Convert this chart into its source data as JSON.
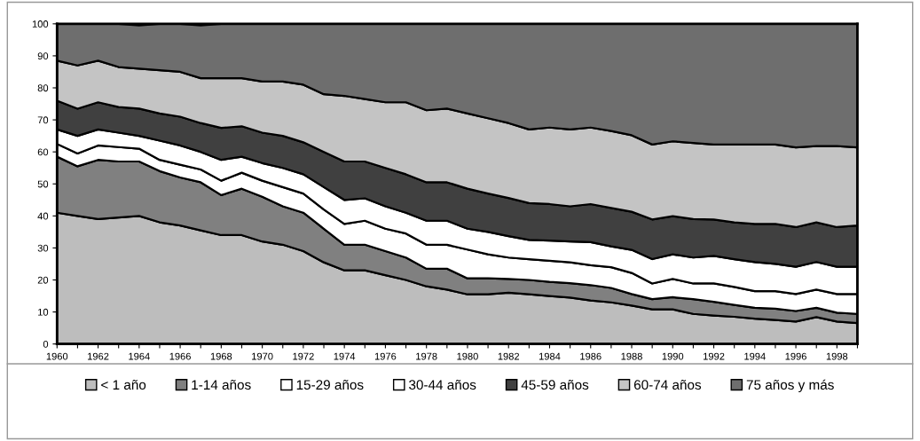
{
  "chart_data": {
    "type": "area",
    "stacked": true,
    "x": [
      1960,
      1961,
      1962,
      1963,
      1964,
      1965,
      1966,
      1967,
      1968,
      1969,
      1970,
      1971,
      1972,
      1973,
      1974,
      1975,
      1976,
      1977,
      1978,
      1979,
      1980,
      1981,
      1982,
      1983,
      1984,
      1985,
      1986,
      1987,
      1988,
      1989,
      1990,
      1991,
      1992,
      1993,
      1994,
      1995,
      1996,
      1997,
      1998,
      1999
    ],
    "series": [
      {
        "name": "< 1 año",
        "color": "#bdbdbd",
        "values": [
          41,
          40,
          39,
          39.5,
          40,
          38,
          37,
          35.5,
          34,
          34,
          32,
          31,
          29,
          25.5,
          23,
          23,
          21.5,
          20,
          18,
          17,
          15.5,
          15.5,
          16,
          15.5,
          15,
          14.5,
          13.6,
          13,
          12,
          10.8,
          10.8,
          9.4,
          8.9,
          8.5,
          7.9,
          7.5,
          7,
          8.4,
          7,
          6.5
        ]
      },
      {
        "name": "1-14 años",
        "color": "#808080",
        "values": [
          17.5,
          15.5,
          18.5,
          17.5,
          17,
          16,
          15,
          15,
          12.5,
          14.5,
          14,
          12,
          12,
          10.5,
          8,
          8,
          7.5,
          7,
          5.5,
          6.5,
          5,
          5,
          4.3,
          4.5,
          4.4,
          4.5,
          4.8,
          4.5,
          3.6,
          3.2,
          3.8,
          4.6,
          4.3,
          3.7,
          3.4,
          3.5,
          3.3,
          2.9,
          2.8,
          2.9
        ]
      },
      {
        "name": "15-29 años",
        "color": "#ffffff",
        "values": [
          4,
          4,
          4.5,
          4.5,
          4,
          3.5,
          4,
          4,
          4.5,
          5,
          5,
          6,
          6,
          6,
          6.5,
          7.5,
          7,
          7.5,
          7.5,
          7.5,
          9,
          7.5,
          6.7,
          6.5,
          6.6,
          6.5,
          6.2,
          6.5,
          6.6,
          4.9,
          5.7,
          4.9,
          5.7,
          5.6,
          5.2,
          5.5,
          5.3,
          5.7,
          5.8,
          6.2
        ]
      },
      {
        "name": "30-44 años",
        "color": "#ffffff",
        "values": [
          4.5,
          5.5,
          5,
          4.5,
          4,
          6,
          6,
          5.5,
          6.5,
          5,
          5.5,
          6,
          6,
          7,
          7.5,
          7,
          7,
          6.5,
          7.5,
          7.5,
          6.5,
          7,
          6.7,
          6,
          6.3,
          6.5,
          7.2,
          6.5,
          7.2,
          7.6,
          7.7,
          8.1,
          8.6,
          8.7,
          9.1,
          8.5,
          8.5,
          8.6,
          8.5,
          8.5
        ]
      },
      {
        "name": "45-59 años",
        "color": "#404040",
        "values": [
          9,
          8.5,
          8.5,
          8,
          8.5,
          8.5,
          9,
          9,
          10,
          9.5,
          9.5,
          10,
          10,
          11,
          12,
          11.5,
          12,
          12,
          12,
          12,
          12.5,
          12,
          11.9,
          11.5,
          11.4,
          11,
          11.9,
          12,
          11.9,
          12.4,
          11.9,
          12,
          11.4,
          11.5,
          11.9,
          12.5,
          12.4,
          12.4,
          12.4,
          12.9
        ]
      },
      {
        "name": "60-74 años",
        "color": "#c4c4c4",
        "values": [
          12.5,
          13.5,
          13,
          12.5,
          12.5,
          13.5,
          14,
          14,
          15.5,
          15,
          16,
          17,
          18,
          18,
          20.5,
          19.5,
          20.5,
          22.5,
          22.5,
          23,
          23.5,
          23.5,
          23.4,
          23,
          23.9,
          24,
          23.9,
          24,
          23.9,
          23.4,
          23.4,
          23.8,
          23.4,
          24.3,
          24.8,
          24.8,
          24.9,
          23.8,
          25.3,
          24.4
        ]
      },
      {
        "name": "75 años y más",
        "color": "#6e6e6e",
        "values": [
          11.5,
          13,
          11.5,
          13.5,
          13.5,
          14.5,
          15,
          16.5,
          17,
          17,
          18,
          18,
          19,
          22,
          22.5,
          23.5,
          24.5,
          24.5,
          27,
          26.5,
          28,
          29.5,
          31,
          33,
          32.4,
          33,
          32.4,
          33.5,
          34.8,
          37.7,
          36.7,
          37.2,
          37.7,
          37.7,
          37.7,
          37.7,
          38.6,
          38.2,
          38.2,
          38.6
        ]
      }
    ],
    "xlim": [
      1960,
      1999
    ],
    "xticks": [
      1960,
      {
        "value": 1961,
        "label": null
      },
      1962,
      {
        "value": 1963,
        "label": null
      },
      1964,
      {
        "value": 1965,
        "label": null
      },
      1966,
      {
        "value": 1967,
        "label": null
      },
      1968,
      {
        "value": 1969,
        "label": null
      },
      1970,
      {
        "value": 1971,
        "label": null
      },
      1972,
      {
        "value": 1973,
        "label": null
      },
      1974,
      {
        "value": 1975,
        "label": null
      },
      1976,
      {
        "value": 1977,
        "label": null
      },
      1978,
      {
        "value": 1979,
        "label": null
      },
      1980,
      {
        "value": 1981,
        "label": null
      },
      1982,
      {
        "value": 1983,
        "label": null
      },
      1984,
      {
        "value": 1985,
        "label": null
      },
      1986,
      {
        "value": 1987,
        "label": null
      },
      1988,
      {
        "value": 1989,
        "label": null
      },
      1990,
      {
        "value": 1991,
        "label": null
      },
      1992,
      {
        "value": 1993,
        "label": null
      },
      1994,
      {
        "value": 1995,
        "label": null
      },
      1996,
      {
        "value": 1997,
        "label": null
      },
      1998,
      {
        "value": 1999,
        "label": null
      }
    ],
    "ylim": [
      0,
      100
    ],
    "yticks": [
      0,
      10,
      20,
      30,
      40,
      50,
      60,
      70,
      80,
      90,
      100
    ],
    "grid": false,
    "legend": "bottom"
  }
}
